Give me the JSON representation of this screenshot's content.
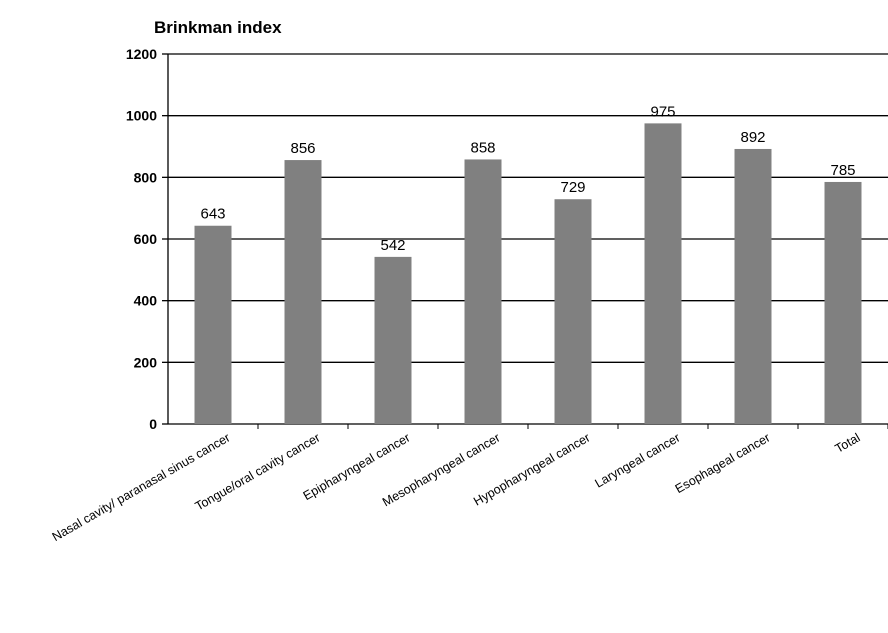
{
  "chart_data": {
    "type": "bar",
    "title": "Brinkman index",
    "xlabel": "",
    "ylabel": "",
    "categories": [
      "Nasal cavity/ paranasal sinus cancer",
      "Tongue/oral cavity cancer",
      "Epipharyngeal cancer",
      "Mesopharyngeal cancer",
      "Hypopharyngeal cancer",
      "Laryngeal cancer",
      "Esophageal cancer",
      "Total"
    ],
    "values": [
      643,
      856,
      542,
      858,
      729,
      975,
      892,
      785
    ],
    "ylim": [
      0,
      1200
    ],
    "yticks": [
      0,
      200,
      400,
      600,
      800,
      1000,
      1200
    ],
    "grid": true,
    "colors": {
      "bar": "#808080",
      "grid": "#000000"
    }
  }
}
